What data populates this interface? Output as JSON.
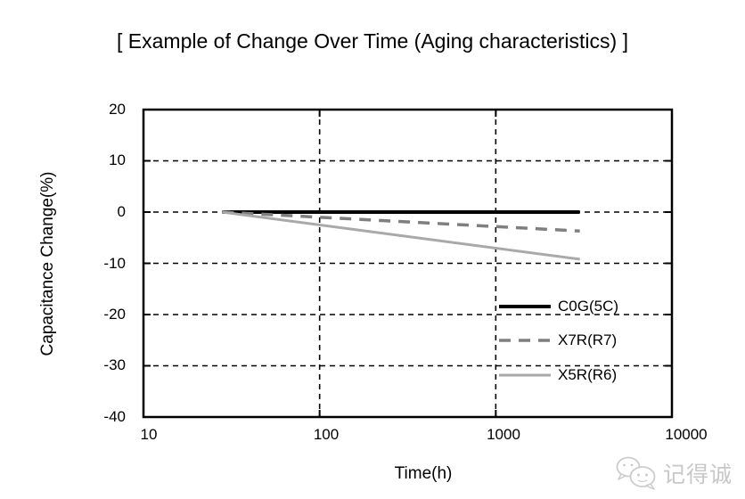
{
  "page": {
    "background": "#ffffff"
  },
  "chart_data": {
    "type": "line",
    "title": "[ Example of Change Over Time (Aging characteristics) ]",
    "xlabel": "Time(h)",
    "ylabel": "Capacitance Change(%)",
    "x_scale": "log",
    "xlim": [
      10,
      10000
    ],
    "ylim": [
      -40,
      20
    ],
    "xtick_labels": [
      "10",
      "100",
      "1000",
      "10000"
    ],
    "ytick_labels": [
      "20",
      "10",
      "0",
      "-10",
      "-20",
      "-30",
      "-40"
    ],
    "grid_x": [
      100,
      1000
    ],
    "grid_y": [
      10,
      0,
      -10,
      -20,
      -30
    ],
    "grid_style": "dashed",
    "axis_color": "#000000",
    "legend_position": "inside-bottom-right",
    "series": [
      {
        "name": "C0G(5C)",
        "color": "#000000",
        "style": "solid",
        "width": 4,
        "points": [
          [
            28,
            0
          ],
          [
            3000,
            0
          ]
        ]
      },
      {
        "name": "X7R(R7)",
        "color": "#7f7f7f",
        "style": "dashed",
        "width": 3.5,
        "points": [
          [
            28,
            0
          ],
          [
            3000,
            -3.7
          ]
        ]
      },
      {
        "name": "X5R(R6)",
        "color": "#a9a9a9",
        "style": "solid",
        "width": 3,
        "points": [
          [
            28,
            0
          ],
          [
            3000,
            -9.2
          ]
        ]
      }
    ]
  },
  "watermark": {
    "text": "记得诚",
    "icon": "wechat-chat-bubbles-icon",
    "color": "#c9c9c9"
  }
}
